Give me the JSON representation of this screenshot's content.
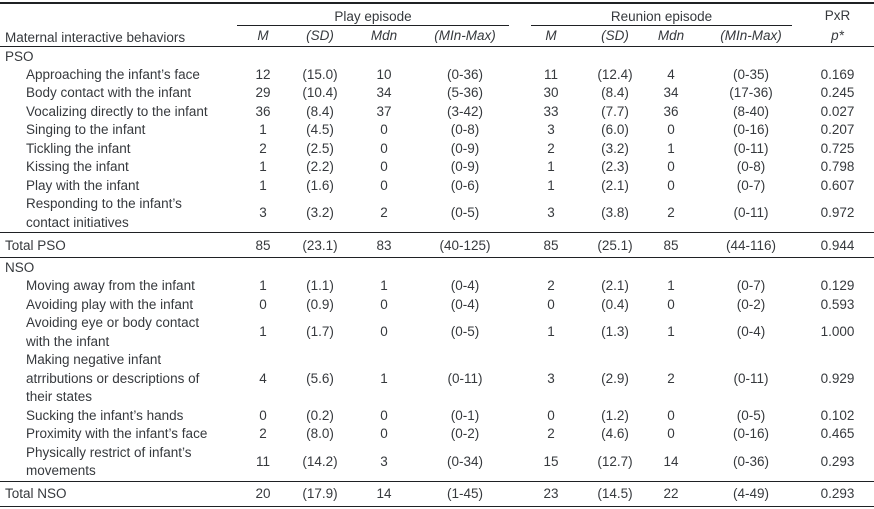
{
  "table": {
    "col1_header": "Maternal interactive behaviors",
    "play_group": "Play episode",
    "reunion_group": "Reunion episode",
    "pxr_group": "PxR",
    "subheaders": {
      "m": "M",
      "sd": "(SD)",
      "mdn": "Mdn",
      "minmax": "(MIn-Max)",
      "p": "p*"
    },
    "sections": [
      {
        "label": "PSO",
        "rows": [
          {
            "label": "Approaching the infant’s face",
            "play": [
              "12",
              "(15.0)",
              "10",
              "(0-36)"
            ],
            "reunion": [
              "11",
              "(12.4)",
              "4",
              "(0-35)"
            ],
            "p": "0.169"
          },
          {
            "label": "Body contact with the infant",
            "play": [
              "29",
              "(10.4)",
              "34",
              "(5-36)"
            ],
            "reunion": [
              "30",
              "(8.4)",
              "34",
              "(17-36)"
            ],
            "p": "0.245"
          },
          {
            "label": "Vocalizing directly to the infant",
            "play": [
              "36",
              "(8.4)",
              "37",
              "(3-42)"
            ],
            "reunion": [
              "33",
              "(7.7)",
              "36",
              "(8-40)"
            ],
            "p": "0.027"
          },
          {
            "label": "Singing to the infant",
            "play": [
              "1",
              "(4.5)",
              "0",
              "(0-8)"
            ],
            "reunion": [
              "3",
              "(6.0)",
              "0",
              "(0-16)"
            ],
            "p": "0.207"
          },
          {
            "label": "Tickling the infant",
            "play": [
              "2",
              "(2.5)",
              "0",
              "(0-9)"
            ],
            "reunion": [
              "2",
              "(3.2)",
              "1",
              "(0-11)"
            ],
            "p": "0.725"
          },
          {
            "label": "Kissing the infant",
            "play": [
              "1",
              "(2.2)",
              "0",
              "(0-9)"
            ],
            "reunion": [
              "1",
              "(2.3)",
              "0",
              "(0-8)"
            ],
            "p": "0.798"
          },
          {
            "label": "Play with the infant",
            "play": [
              "1",
              "(1.6)",
              "0",
              "(0-6)"
            ],
            "reunion": [
              "1",
              "(2.1)",
              "0",
              "(0-7)"
            ],
            "p": "0.607"
          },
          {
            "label": "Responding to the infant’s\ncontact initiatives",
            "play": [
              "3",
              "(3.2)",
              "2",
              "(0-5)"
            ],
            "reunion": [
              "3",
              "(3.8)",
              "2",
              "(0-11)"
            ],
            "p": "0.972"
          }
        ],
        "total": {
          "label": "Total PSO",
          "play": [
            "85",
            "(23.1)",
            "83",
            "(40-125)"
          ],
          "reunion": [
            "85",
            "(25.1)",
            "85",
            "(44-116)"
          ],
          "p": "0.944"
        }
      },
      {
        "label": "NSO",
        "rows": [
          {
            "label": "Moving away from the infant",
            "play": [
              "1",
              "(1.1)",
              "1",
              "(0-4)"
            ],
            "reunion": [
              "2",
              "(2.1)",
              "1",
              "(0-7)"
            ],
            "p": "0.129"
          },
          {
            "label": "Avoiding play with the infant",
            "play": [
              "0",
              "(0.9)",
              "0",
              "(0-4)"
            ],
            "reunion": [
              "0",
              "(0.4)",
              "0",
              "(0-2)"
            ],
            "p": "0.593"
          },
          {
            "label": "Avoiding eye or body contact\nwith the infant",
            "play": [
              "1",
              "(1.7)",
              "0",
              "(0-5)"
            ],
            "reunion": [
              "1",
              "(1.3)",
              "1",
              "(0-4)"
            ],
            "p": "1.000"
          },
          {
            "label": "Making negative infant\natrributions or descriptions of\ntheir states",
            "play": [
              "4",
              "(5.6)",
              "1",
              "(0-11)"
            ],
            "reunion": [
              "3",
              "(2.9)",
              "2",
              "(0-11)"
            ],
            "p": "0.929"
          },
          {
            "label": "Sucking the infant’s hands",
            "play": [
              "0",
              "(0.2)",
              "0",
              "(0-1)"
            ],
            "reunion": [
              "0",
              "(1.2)",
              "0",
              "(0-5)"
            ],
            "p": "0.102"
          },
          {
            "label": "Proximity with the infant’s face",
            "play": [
              "2",
              "(8.0)",
              "0",
              "(0-2)"
            ],
            "reunion": [
              "2",
              "(4.6)",
              "0",
              "(0-16)"
            ],
            "p": "0.465"
          },
          {
            "label": "Physically restrict of infant’s\nmovements",
            "play": [
              "11",
              "(14.2)",
              "3",
              "(0-34)"
            ],
            "reunion": [
              "15",
              "(12.7)",
              "14",
              "(0-36)"
            ],
            "p": "0.293"
          }
        ],
        "total": {
          "label": "Total NSO",
          "play": [
            "20",
            "(17.9)",
            "14",
            "(1-45)"
          ],
          "reunion": [
            "23",
            "(14.5)",
            "22",
            "(4-49)"
          ],
          "p": "0.293"
        }
      }
    ]
  }
}
